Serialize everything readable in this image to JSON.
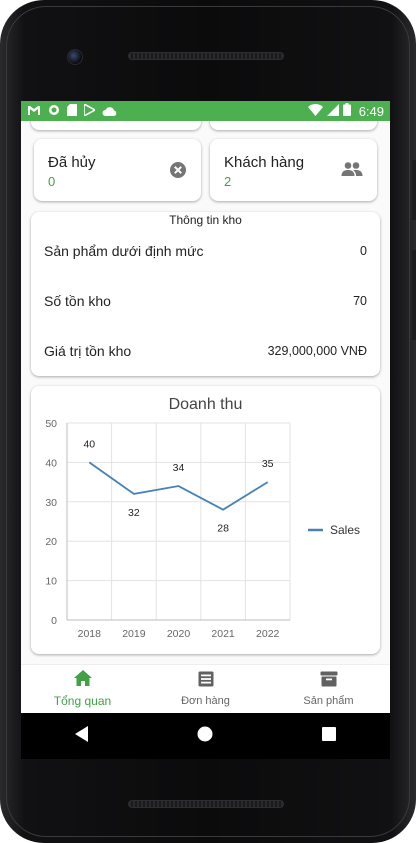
{
  "status_bar": {
    "time": "6:49",
    "left_icons": [
      "gmail-icon",
      "circle-icon",
      "sim-icon",
      "play-store-icon",
      "cloud-icon"
    ],
    "right_icons": [
      "wifi-icon",
      "signal-icon",
      "battery-icon"
    ],
    "color": "#4caf50"
  },
  "stats": [
    {
      "title": "Đã hủy",
      "value": "0",
      "icon": "cancel-icon"
    },
    {
      "title": "Khách hàng",
      "value": "2",
      "icon": "people-icon"
    }
  ],
  "inventory": {
    "title": "Thông tin kho",
    "rows": [
      {
        "label": "Sản phẩm dưới định mức",
        "value": "0"
      },
      {
        "label": "Số tồn kho",
        "value": "70"
      },
      {
        "label": "Giá trị tồn kho",
        "value": "329,000,000 VNĐ"
      }
    ]
  },
  "revenue_chart": {
    "title": "Doanh thu",
    "legend": "Sales"
  },
  "chart_data": {
    "type": "line",
    "title": "Doanh thu",
    "categories": [
      "2018",
      "2019",
      "2020",
      "2021",
      "2022"
    ],
    "series": [
      {
        "name": "Sales",
        "values": [
          40,
          32,
          34,
          28,
          35
        ],
        "color": "#4682b4"
      }
    ],
    "ylim": [
      0,
      50
    ],
    "yticks": [
      0,
      10,
      20,
      30,
      40,
      50
    ],
    "grid": true,
    "legend_position": "right"
  },
  "bottom_nav": [
    {
      "label": "Tổng quan",
      "icon": "home-icon",
      "active": true
    },
    {
      "label": "Đơn hàng",
      "icon": "orders-icon",
      "active": false
    },
    {
      "label": "Sản phẩm",
      "icon": "archive-icon",
      "active": false
    }
  ],
  "colors": {
    "accent": "#43a047",
    "line": "#4682b4"
  }
}
